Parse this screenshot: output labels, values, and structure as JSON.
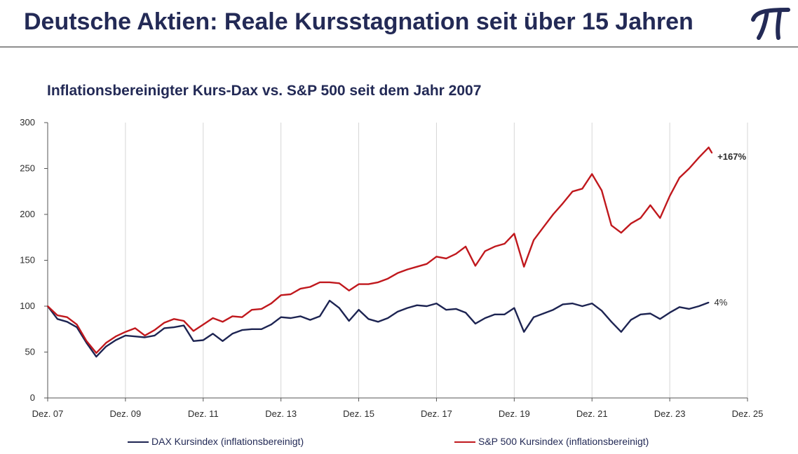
{
  "header": {
    "title": "Deutsche Aktien: Reale Kursstagnation seit über 15 Jahren",
    "logo_icon": "pi-logo-icon"
  },
  "colors": {
    "title": "#232a56",
    "dax": "#1d2452",
    "sp500": "#c0181d",
    "grid": "#d6d6d6",
    "header_rule": "#8e8e8e"
  },
  "chart_data": {
    "type": "line",
    "title": "Inflationsbereinigter Kurs-Dax vs. S&P 500 seit dem Jahr 2007",
    "xlabel": "",
    "ylabel": "",
    "ylim": [
      0,
      300
    ],
    "yticks": [
      0,
      50,
      100,
      150,
      200,
      250,
      300
    ],
    "x_ticks": [
      "Dez. 07",
      "Dez. 09",
      "Dez. 11",
      "Dez. 13",
      "Dez. 15",
      "Dez. 17",
      "Dez. 19",
      "Dez. 21",
      "Dez. 23",
      "Dez. 25"
    ],
    "grid": "vertical",
    "legend_placement": "bottom",
    "series": [
      {
        "name": "DAX Kursindex (inflationsbereinigt)",
        "end_label": "4%",
        "points": [
          [
            "2007-12",
            100
          ],
          [
            "2008-03",
            86
          ],
          [
            "2008-06",
            83
          ],
          [
            "2008-09",
            77
          ],
          [
            "2008-12",
            60
          ],
          [
            "2009-03",
            45
          ],
          [
            "2009-06",
            56
          ],
          [
            "2009-09",
            63
          ],
          [
            "2009-12",
            68
          ],
          [
            "2010-03",
            67
          ],
          [
            "2010-06",
            66
          ],
          [
            "2010-09",
            68
          ],
          [
            "2010-12",
            76
          ],
          [
            "2011-03",
            77
          ],
          [
            "2011-06",
            79
          ],
          [
            "2011-09",
            62
          ],
          [
            "2011-12",
            63
          ],
          [
            "2012-03",
            70
          ],
          [
            "2012-06",
            62
          ],
          [
            "2012-09",
            70
          ],
          [
            "2012-12",
            74
          ],
          [
            "2013-03",
            75
          ],
          [
            "2013-06",
            75
          ],
          [
            "2013-09",
            80
          ],
          [
            "2013-12",
            88
          ],
          [
            "2014-03",
            87
          ],
          [
            "2014-06",
            89
          ],
          [
            "2014-09",
            85
          ],
          [
            "2014-12",
            89
          ],
          [
            "2015-03",
            106
          ],
          [
            "2015-06",
            98
          ],
          [
            "2015-09",
            84
          ],
          [
            "2015-12",
            96
          ],
          [
            "2016-03",
            86
          ],
          [
            "2016-06",
            83
          ],
          [
            "2016-09",
            87
          ],
          [
            "2016-12",
            94
          ],
          [
            "2017-03",
            98
          ],
          [
            "2017-06",
            101
          ],
          [
            "2017-09",
            100
          ],
          [
            "2017-12",
            103
          ],
          [
            "2018-03",
            96
          ],
          [
            "2018-06",
            97
          ],
          [
            "2018-09",
            93
          ],
          [
            "2018-12",
            81
          ],
          [
            "2019-03",
            87
          ],
          [
            "2019-06",
            91
          ],
          [
            "2019-09",
            91
          ],
          [
            "2019-12",
            98
          ],
          [
            "2020-03",
            72
          ],
          [
            "2020-06",
            88
          ],
          [
            "2020-09",
            92
          ],
          [
            "2020-12",
            96
          ],
          [
            "2021-03",
            102
          ],
          [
            "2021-06",
            103
          ],
          [
            "2021-09",
            100
          ],
          [
            "2021-12",
            103
          ],
          [
            "2022-03",
            95
          ],
          [
            "2022-06",
            83
          ],
          [
            "2022-09",
            72
          ],
          [
            "2022-12",
            85
          ],
          [
            "2023-03",
            91
          ],
          [
            "2023-06",
            92
          ],
          [
            "2023-09",
            86
          ],
          [
            "2023-12",
            93
          ],
          [
            "2024-03",
            99
          ],
          [
            "2024-06",
            97
          ],
          [
            "2024-09",
            100
          ],
          [
            "2024-12",
            104
          ]
        ]
      },
      {
        "name": "S&P 500 Kursindex (inflationsbereinigt)",
        "end_label": "+167%",
        "points": [
          [
            "2007-12",
            100
          ],
          [
            "2008-03",
            90
          ],
          [
            "2008-06",
            88
          ],
          [
            "2008-09",
            80
          ],
          [
            "2008-12",
            62
          ],
          [
            "2009-03",
            49
          ],
          [
            "2009-06",
            60
          ],
          [
            "2009-09",
            67
          ],
          [
            "2009-12",
            72
          ],
          [
            "2010-03",
            76
          ],
          [
            "2010-06",
            68
          ],
          [
            "2010-09",
            74
          ],
          [
            "2010-12",
            82
          ],
          [
            "2011-03",
            86
          ],
          [
            "2011-06",
            84
          ],
          [
            "2011-09",
            73
          ],
          [
            "2011-12",
            80
          ],
          [
            "2012-03",
            87
          ],
          [
            "2012-06",
            83
          ],
          [
            "2012-09",
            89
          ],
          [
            "2012-12",
            88
          ],
          [
            "2013-03",
            96
          ],
          [
            "2013-06",
            97
          ],
          [
            "2013-09",
            103
          ],
          [
            "2013-12",
            112
          ],
          [
            "2014-03",
            113
          ],
          [
            "2014-06",
            119
          ],
          [
            "2014-09",
            121
          ],
          [
            "2014-12",
            126
          ],
          [
            "2015-03",
            126
          ],
          [
            "2015-06",
            125
          ],
          [
            "2015-09",
            117
          ],
          [
            "2015-12",
            124
          ],
          [
            "2016-03",
            124
          ],
          [
            "2016-06",
            126
          ],
          [
            "2016-09",
            130
          ],
          [
            "2016-12",
            136
          ],
          [
            "2017-03",
            140
          ],
          [
            "2017-06",
            143
          ],
          [
            "2017-09",
            146
          ],
          [
            "2017-12",
            154
          ],
          [
            "2018-03",
            152
          ],
          [
            "2018-06",
            157
          ],
          [
            "2018-09",
            165
          ],
          [
            "2018-12",
            144
          ],
          [
            "2019-03",
            160
          ],
          [
            "2019-06",
            165
          ],
          [
            "2019-09",
            168
          ],
          [
            "2019-12",
            179
          ],
          [
            "2020-03",
            143
          ],
          [
            "2020-06",
            172
          ],
          [
            "2020-09",
            186
          ],
          [
            "2020-12",
            200
          ],
          [
            "2021-03",
            212
          ],
          [
            "2021-06",
            225
          ],
          [
            "2021-09",
            228
          ],
          [
            "2021-12",
            244
          ],
          [
            "2022-03",
            226
          ],
          [
            "2022-06",
            188
          ],
          [
            "2022-09",
            180
          ],
          [
            "2022-12",
            190
          ],
          [
            "2023-03",
            196
          ],
          [
            "2023-06",
            210
          ],
          [
            "2023-09",
            196
          ],
          [
            "2023-12",
            220
          ],
          [
            "2024-03",
            240
          ],
          [
            "2024-06",
            250
          ],
          [
            "2024-09",
            262
          ],
          [
            "2024-12",
            273
          ],
          [
            "2025-01",
            267
          ]
        ]
      }
    ]
  }
}
